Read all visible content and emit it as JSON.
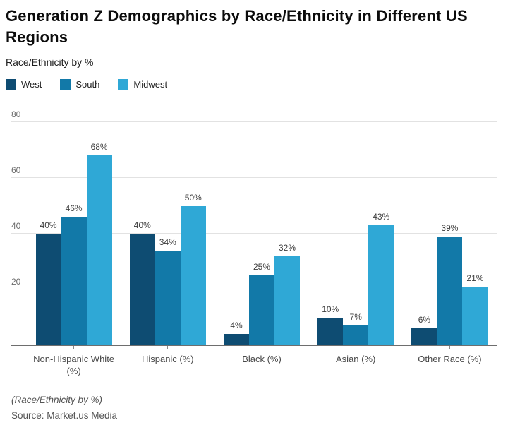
{
  "chart": {
    "title": "Generation Z Demographics by Race/Ethnicity in Different US Regions",
    "subtitle": "Race/Ethnicity by %",
    "footnote": "(Race/Ethnicity by %)",
    "source": "Source: Market.us Media"
  },
  "chart_data": {
    "type": "bar",
    "title": "Generation Z Demographics by Race/Ethnicity in Different US Regions",
    "subtitle": "Race/Ethnicity by %",
    "categories": [
      "Non-Hispanic White (%)",
      "Hispanic (%)",
      "Black (%)",
      "Asian (%)",
      "Other Race (%)"
    ],
    "series": [
      {
        "name": "West",
        "color": "#0e4c72",
        "values": [
          40,
          40,
          4,
          10,
          6
        ]
      },
      {
        "name": "South",
        "color": "#1279a8",
        "values": [
          46,
          34,
          25,
          7,
          39
        ]
      },
      {
        "name": "Midwest",
        "color": "#2fa8d6",
        "values": [
          68,
          50,
          32,
          43,
          21
        ]
      }
    ],
    "ylabel": "",
    "xlabel": "",
    "ylim": [
      0,
      80
    ],
    "yticks": [
      20,
      40,
      60,
      80
    ],
    "grid": true,
    "legend_position": "top-left",
    "value_label_suffix": "%"
  }
}
